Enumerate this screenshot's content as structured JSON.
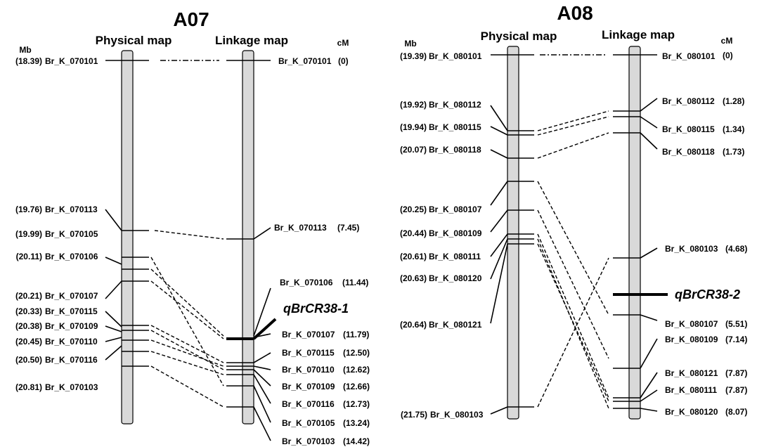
{
  "maps": [
    {
      "chromosome": "A07",
      "physical_header": "Physical map",
      "linkage_header": "Linkage map",
      "physical_unit": "Mb",
      "linkage_unit": "cM",
      "physical_markers": [
        {
          "marker": "Br_K_070101",
          "pos": "(18.39)"
        },
        {
          "marker": "Br_K_070113",
          "pos": "(19.76)"
        },
        {
          "marker": "Br_K_070105",
          "pos": "(19.99)"
        },
        {
          "marker": "Br_K_070106",
          "pos": "(20.11)"
        },
        {
          "marker": "Br_K_070107",
          "pos": "(20.21)"
        },
        {
          "marker": "Br_K_070115",
          "pos": "(20.33)"
        },
        {
          "marker": "Br_K_070109",
          "pos": "(20.38)"
        },
        {
          "marker": "Br_K_070110",
          "pos": "(20.45)"
        },
        {
          "marker": "Br_K_070116",
          "pos": "(20.50)"
        },
        {
          "marker": "Br_K_070103",
          "pos": "(20.81)"
        }
      ],
      "linkage_markers": [
        {
          "marker": "Br_K_070101",
          "pos": "(0)"
        },
        {
          "marker": "Br_K_070113",
          "pos": "(7.45)"
        },
        {
          "marker": "Br_K_070106",
          "pos": "(11.44)"
        },
        {
          "marker": "Br_K_070107",
          "pos": "(11.79)"
        },
        {
          "marker": "Br_K_070115",
          "pos": "(12.50)"
        },
        {
          "marker": "Br_K_070110",
          "pos": "(12.62)"
        },
        {
          "marker": "Br_K_070109",
          "pos": "(12.66)"
        },
        {
          "marker": "Br_K_070116",
          "pos": "(12.73)"
        },
        {
          "marker": "Br_K_070105",
          "pos": "(13.24)"
        },
        {
          "marker": "Br_K_070103",
          "pos": "(14.42)"
        }
      ],
      "qtl": "qBrCR38-1"
    },
    {
      "chromosome": "A08",
      "physical_header": "Physical map",
      "linkage_header": "Linkage map",
      "physical_unit": "Mb",
      "linkage_unit": "cM",
      "physical_markers": [
        {
          "marker": "Br_K_080101",
          "pos": "(19.39)"
        },
        {
          "marker": "Br_K_080112",
          "pos": "(19.92)"
        },
        {
          "marker": "Br_K_080115",
          "pos": "(19.94)"
        },
        {
          "marker": "Br_K_080118",
          "pos": "(20.07)"
        },
        {
          "marker": "Br_K_080107",
          "pos": "(20.25)"
        },
        {
          "marker": "Br_K_080109",
          "pos": "(20.44)"
        },
        {
          "marker": "Br_K_080111",
          "pos": "(20.61)"
        },
        {
          "marker": "Br_K_080120",
          "pos": "(20.63)"
        },
        {
          "marker": "Br_K_080121",
          "pos": "(20.64)"
        },
        {
          "marker": "Br_K_080103",
          "pos": "(21.75)"
        }
      ],
      "linkage_markers": [
        {
          "marker": "Br_K_080101",
          "pos": "(0)"
        },
        {
          "marker": "Br_K_080112",
          "pos": "(1.28)"
        },
        {
          "marker": "Br_K_080115",
          "pos": "(1.34)"
        },
        {
          "marker": "Br_K_080118",
          "pos": "(1.73)"
        },
        {
          "marker": "Br_K_080103",
          "pos": "(4.68)"
        },
        {
          "marker": "Br_K_080107",
          "pos": "(5.51)"
        },
        {
          "marker": "Br_K_080109",
          "pos": "(7.14)"
        },
        {
          "marker": "Br_K_080121",
          "pos": "(7.87)"
        },
        {
          "marker": "Br_K_080111",
          "pos": "(7.87)"
        },
        {
          "marker": "Br_K_080120",
          "pos": "(8.07)"
        }
      ],
      "qtl": "qBrCR38-2"
    }
  ]
}
